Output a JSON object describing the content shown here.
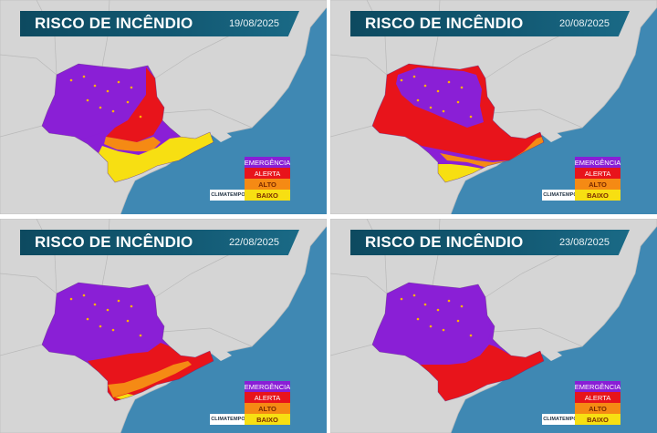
{
  "title": "RISCO DE INCÊNDIO",
  "panels": [
    {
      "date": "19/08/2025"
    },
    {
      "date": "20/08/2025"
    },
    {
      "date": "22/08/2025"
    },
    {
      "date": "23/08/2025"
    }
  ],
  "legend": [
    {
      "key": "emergencia",
      "label": "EMERGÊNCIA",
      "color": "#8a1fd6"
    },
    {
      "key": "alerta",
      "label": "ALERTA",
      "color": "#e8141b"
    },
    {
      "key": "alto",
      "label": "ALTO",
      "color": "#f58a14"
    },
    {
      "key": "baixo",
      "label": "BAIXO",
      "color": "#f7df12"
    }
  ],
  "logo_text": "CLIMATEMPO",
  "colors": {
    "ocean": "#3f88b3",
    "land": "#d5d5d5",
    "title_bar": "#0d4a60"
  }
}
